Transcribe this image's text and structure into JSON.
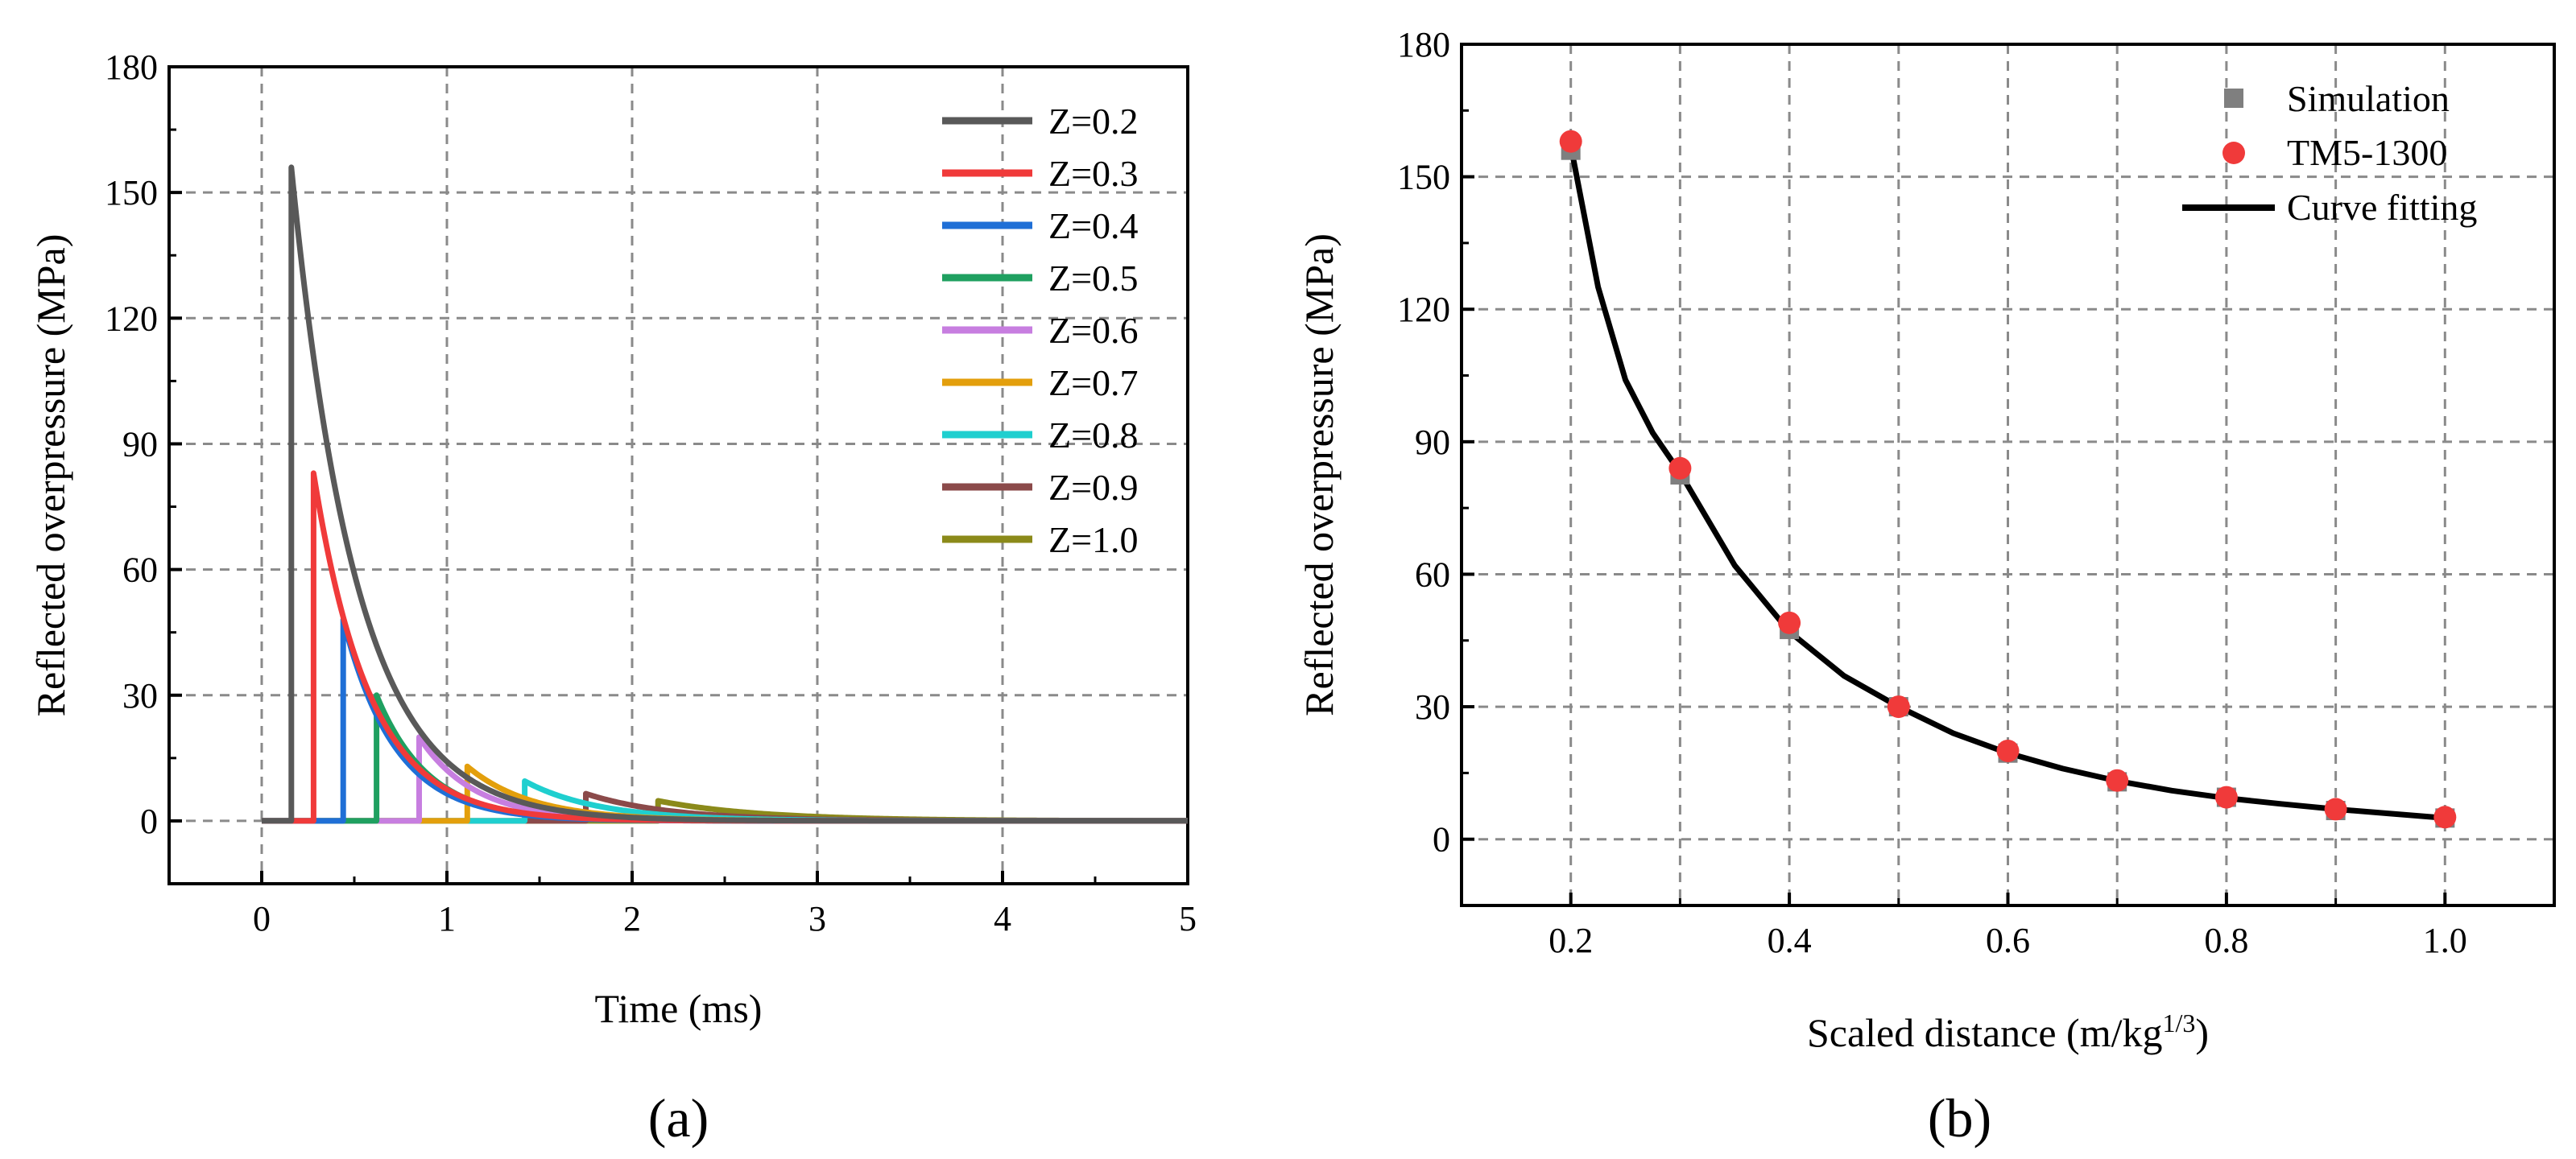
{
  "chart_data": [
    {
      "panel": "a",
      "type": "line",
      "panel_label": "(a)",
      "title": "",
      "xlabel": "Time (ms)",
      "ylabel": "Reflected overpressure (MPa)",
      "xlim": [
        -0.5,
        5
      ],
      "ylim": [
        -15,
        180
      ],
      "xticks": [
        0,
        1,
        2,
        3,
        4,
        5
      ],
      "yticks": [
        0,
        30,
        60,
        90,
        120,
        150,
        180
      ],
      "grid": true,
      "legend_position": "top-right",
      "series": [
        {
          "name": "Z=0.2",
          "color": "#595959",
          "arrival_time": 0.16,
          "peak": 156,
          "decay": 0.35
        },
        {
          "name": "Z=0.3",
          "color": "#f03a3a",
          "arrival_time": 0.28,
          "peak": 83,
          "decay": 0.3
        },
        {
          "name": "Z=0.4",
          "color": "#1f6fd6",
          "arrival_time": 0.44,
          "peak": 48,
          "decay": 0.28
        },
        {
          "name": "Z=0.5",
          "color": "#1fa060",
          "arrival_time": 0.62,
          "peak": 30,
          "decay": 0.28
        },
        {
          "name": "Z=0.6",
          "color": "#c77ee0",
          "arrival_time": 0.85,
          "peak": 20,
          "decay": 0.3
        },
        {
          "name": "Z=0.7",
          "color": "#e39f0c",
          "arrival_time": 1.11,
          "peak": 13,
          "decay": 0.35
        },
        {
          "name": "Z=0.8",
          "color": "#1fcfcf",
          "arrival_time": 1.42,
          "peak": 9.5,
          "decay": 0.4
        },
        {
          "name": "Z=0.9",
          "color": "#8b4a4a",
          "arrival_time": 1.75,
          "peak": 6.5,
          "decay": 0.45
        },
        {
          "name": "Z=1.0",
          "color": "#8b8a1a",
          "arrival_time": 2.14,
          "peak": 4.8,
          "decay": 0.55
        }
      ]
    },
    {
      "panel": "b",
      "type": "scatter",
      "panel_label": "(b)",
      "title": "",
      "xlabel": "Scaled distance (m/kg",
      "xlabel_sup": "1/3",
      "xlabel_end": ")",
      "ylabel": "Reflected overpressure (MPa)",
      "xlim": [
        0.1,
        1.1
      ],
      "ylim": [
        -15,
        180
      ],
      "xticks": [
        0.2,
        0.4,
        0.6,
        0.8,
        1.0
      ],
      "xtick_labels": [
        "0.2",
        "0.4",
        "0.6",
        "0.8",
        "1.0"
      ],
      "grid_x": [
        0.2,
        0.3,
        0.4,
        0.5,
        0.6,
        0.7,
        0.8,
        0.9,
        1.0
      ],
      "yticks": [
        0,
        30,
        60,
        90,
        120,
        150,
        180
      ],
      "grid": true,
      "legend_position": "top-right",
      "x": [
        0.2,
        0.3,
        0.4,
        0.5,
        0.6,
        0.7,
        0.8,
        0.9,
        1.0
      ],
      "series": [
        {
          "name": "Simulation",
          "marker": "square",
          "color": "#7f7f7f",
          "values": [
            156,
            82.5,
            47.5,
            30,
            19.5,
            13,
            9.5,
            6.5,
            4.8
          ]
        },
        {
          "name": "TM5-1300",
          "marker": "circle",
          "color": "#f03a3a",
          "values": [
            158,
            84,
            49,
            30,
            20,
            13.3,
            9.5,
            6.8,
            5
          ]
        },
        {
          "name": "Curve fitting",
          "marker": "line",
          "color": "#000000",
          "fit_x": [
            0.2,
            0.225,
            0.25,
            0.275,
            0.3,
            0.35,
            0.4,
            0.45,
            0.5,
            0.55,
            0.6,
            0.65,
            0.7,
            0.75,
            0.8,
            0.85,
            0.9,
            0.95,
            1.0
          ],
          "fit_y": [
            157,
            125,
            104,
            92,
            83,
            62,
            47,
            37,
            30,
            24,
            19.5,
            16,
            13.2,
            11,
            9.3,
            8,
            6.8,
            5.8,
            4.8
          ]
        }
      ]
    }
  ]
}
